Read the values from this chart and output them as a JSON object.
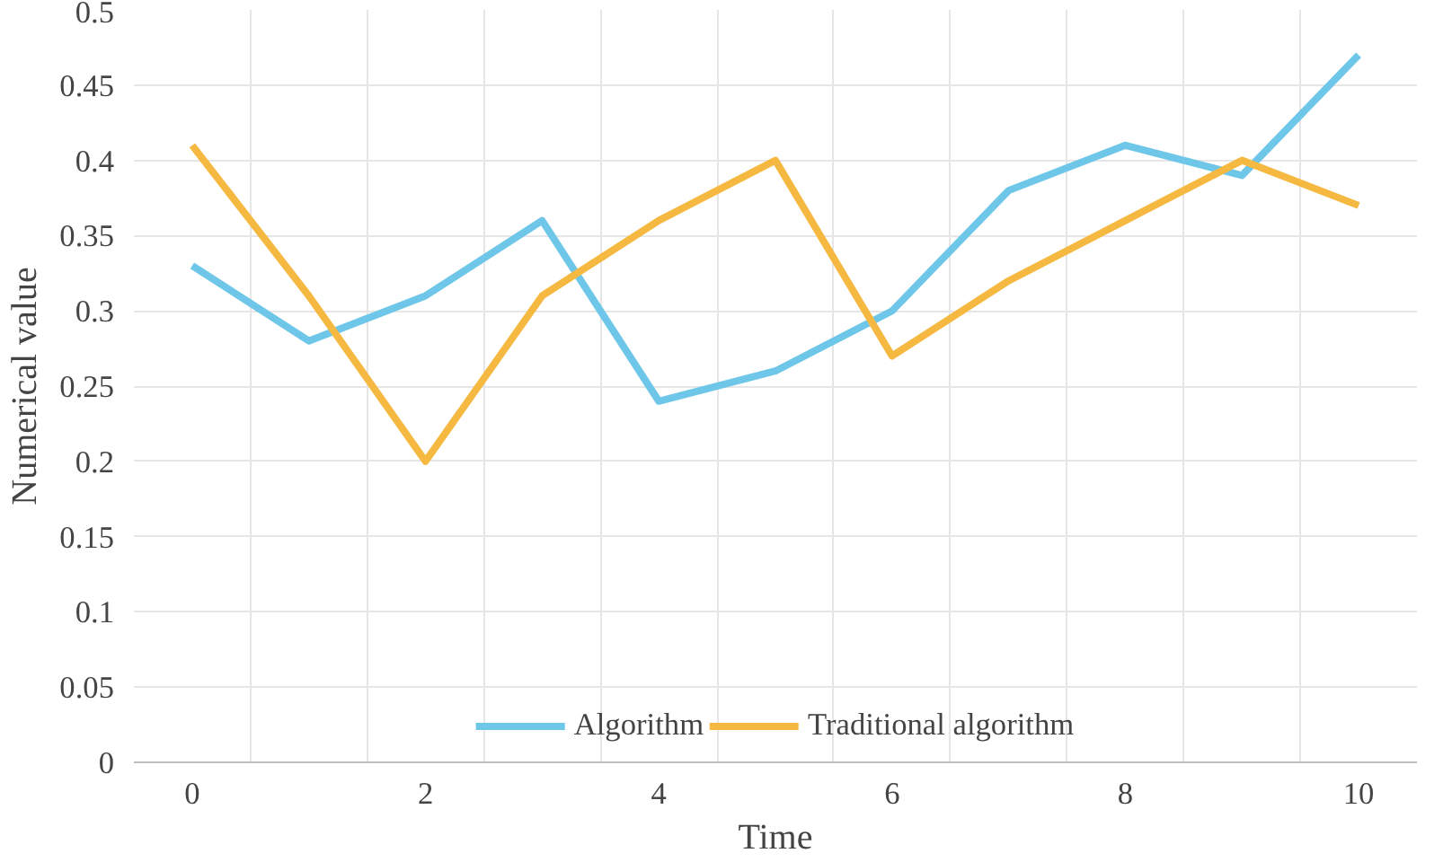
{
  "chart_data": {
    "type": "line",
    "xlabel": "Time",
    "ylabel": "Numerical value",
    "categories": [
      "0",
      null,
      "2",
      null,
      "4",
      null,
      "6",
      null,
      "8",
      null,
      "10"
    ],
    "series": [
      {
        "name": "Algorithm",
        "color": "#6ec6e8",
        "values": [
          0.33,
          0.28,
          0.31,
          0.36,
          0.24,
          0.26,
          0.3,
          0.38,
          0.41,
          0.39,
          0.47
        ]
      },
      {
        "name": "Traditional algorithm",
        "color": "#f5b942",
        "values": [
          0.41,
          0.31,
          0.2,
          0.31,
          0.36,
          0.4,
          0.27,
          0.32,
          0.36,
          0.4,
          0.37
        ]
      }
    ],
    "ylim": [
      0,
      0.5
    ],
    "yticks": [
      0,
      0.05,
      0.1,
      0.15,
      0.2,
      0.25,
      0.3,
      0.35,
      0.4,
      0.45,
      0.5
    ],
    "grid": true,
    "legend": "bottom",
    "marker": "none",
    "line_style": "solid"
  }
}
